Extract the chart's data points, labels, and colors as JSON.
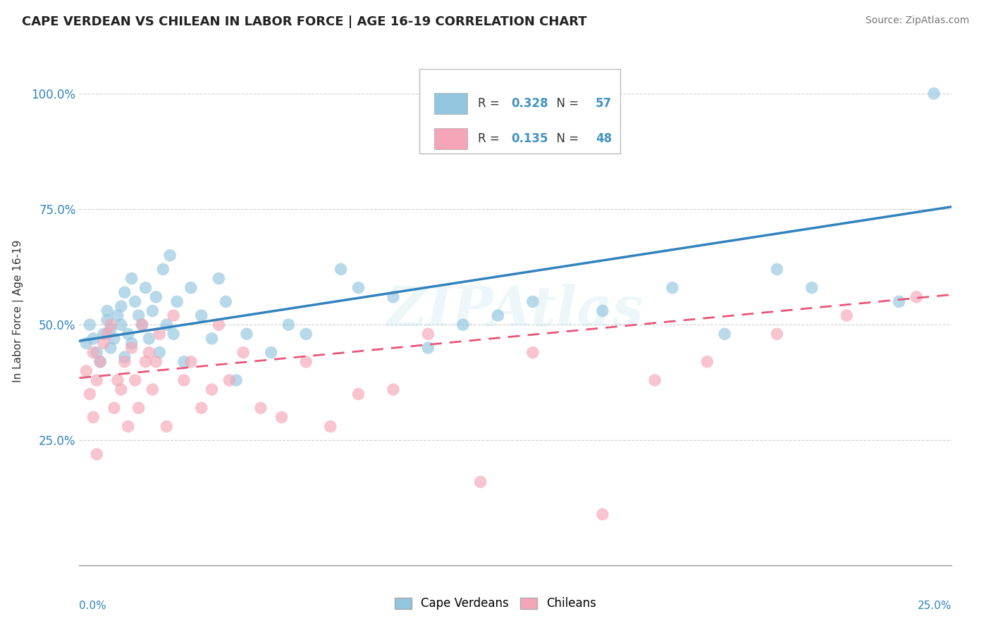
{
  "title": "CAPE VERDEAN VS CHILEAN IN LABOR FORCE | AGE 16-19 CORRELATION CHART",
  "source": "Source: ZipAtlas.com",
  "ylabel": "In Labor Force | Age 16-19",
  "xlim": [
    0.0,
    0.25
  ],
  "ylim": [
    -0.02,
    1.08
  ],
  "yticks": [
    0.0,
    0.25,
    0.5,
    0.75,
    1.0
  ],
  "ytick_labels": [
    "",
    "25.0%",
    "50.0%",
    "75.0%",
    "100.0%"
  ],
  "xtick_left": "0.0%",
  "xtick_right": "25.0%",
  "blue_R": "0.328",
  "blue_N": "57",
  "pink_R": "0.135",
  "pink_N": "48",
  "blue_color": "#92c5de",
  "pink_color": "#f4a5b8",
  "blue_line_color": "#3182bd",
  "pink_line_color": "#e8567a",
  "legend_R_N_color": "#4393c3",
  "legend_blue_label": "Cape Verdeans",
  "legend_pink_label": "Chileans",
  "blue_scatter_x": [
    0.002,
    0.003,
    0.004,
    0.005,
    0.006,
    0.007,
    0.008,
    0.008,
    0.009,
    0.009,
    0.01,
    0.011,
    0.012,
    0.012,
    0.013,
    0.013,
    0.014,
    0.015,
    0.015,
    0.016,
    0.017,
    0.018,
    0.019,
    0.02,
    0.021,
    0.022,
    0.023,
    0.024,
    0.025,
    0.026,
    0.027,
    0.028,
    0.03,
    0.032,
    0.035,
    0.038,
    0.04,
    0.042,
    0.045,
    0.048,
    0.055,
    0.06,
    0.065,
    0.075,
    0.08,
    0.09,
    0.1,
    0.11,
    0.12,
    0.13,
    0.15,
    0.17,
    0.185,
    0.2,
    0.21,
    0.235,
    0.245
  ],
  "blue_scatter_y": [
    0.46,
    0.5,
    0.47,
    0.44,
    0.42,
    0.48,
    0.51,
    0.53,
    0.45,
    0.49,
    0.47,
    0.52,
    0.5,
    0.54,
    0.43,
    0.57,
    0.48,
    0.46,
    0.6,
    0.55,
    0.52,
    0.5,
    0.58,
    0.47,
    0.53,
    0.56,
    0.44,
    0.62,
    0.5,
    0.65,
    0.48,
    0.55,
    0.42,
    0.58,
    0.52,
    0.47,
    0.6,
    0.55,
    0.38,
    0.48,
    0.44,
    0.5,
    0.48,
    0.62,
    0.58,
    0.56,
    0.45,
    0.5,
    0.52,
    0.55,
    0.53,
    0.58,
    0.48,
    0.62,
    0.58,
    0.55,
    1.0
  ],
  "pink_scatter_x": [
    0.002,
    0.003,
    0.004,
    0.004,
    0.005,
    0.005,
    0.006,
    0.007,
    0.008,
    0.009,
    0.01,
    0.011,
    0.012,
    0.013,
    0.014,
    0.015,
    0.016,
    0.017,
    0.018,
    0.019,
    0.02,
    0.021,
    0.022,
    0.023,
    0.025,
    0.027,
    0.03,
    0.032,
    0.035,
    0.038,
    0.04,
    0.043,
    0.047,
    0.052,
    0.058,
    0.065,
    0.072,
    0.08,
    0.09,
    0.1,
    0.115,
    0.13,
    0.15,
    0.165,
    0.18,
    0.2,
    0.22,
    0.24
  ],
  "pink_scatter_y": [
    0.4,
    0.35,
    0.44,
    0.3,
    0.38,
    0.22,
    0.42,
    0.46,
    0.48,
    0.5,
    0.32,
    0.38,
    0.36,
    0.42,
    0.28,
    0.45,
    0.38,
    0.32,
    0.5,
    0.42,
    0.44,
    0.36,
    0.42,
    0.48,
    0.28,
    0.52,
    0.38,
    0.42,
    0.32,
    0.36,
    0.5,
    0.38,
    0.44,
    0.32,
    0.3,
    0.42,
    0.28,
    0.35,
    0.36,
    0.48,
    0.16,
    0.44,
    0.09,
    0.38,
    0.42,
    0.48,
    0.52,
    0.56
  ],
  "blue_trend_x": [
    0.0,
    0.25
  ],
  "blue_trend_y": [
    0.465,
    0.755
  ],
  "pink_trend_x": [
    0.0,
    0.25
  ],
  "pink_trend_y": [
    0.385,
    0.565
  ],
  "watermark": "ZIPAtlas",
  "bg_color": "#ffffff",
  "grid_color": "#d0d0d0"
}
